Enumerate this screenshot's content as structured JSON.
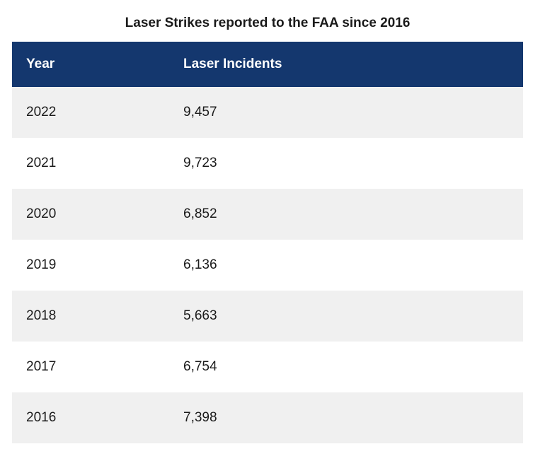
{
  "table": {
    "title": "Laser Strikes reported to the FAA since 2016",
    "columns": [
      "Year",
      "Laser Incidents"
    ],
    "rows": [
      {
        "year": "2022",
        "incidents": "9,457"
      },
      {
        "year": "2021",
        "incidents": "9,723"
      },
      {
        "year": "2020",
        "incidents": "6,852"
      },
      {
        "year": "2019",
        "incidents": "6,136"
      },
      {
        "year": "2018",
        "incidents": "5,663"
      },
      {
        "year": "2017",
        "incidents": "6,754"
      },
      {
        "year": "2016",
        "incidents": "7,398"
      }
    ]
  },
  "colors": {
    "header_background": "#14376e",
    "header_text": "#ffffff",
    "shaded_row": "#f0f0f0",
    "plain_row": "#ffffff"
  }
}
